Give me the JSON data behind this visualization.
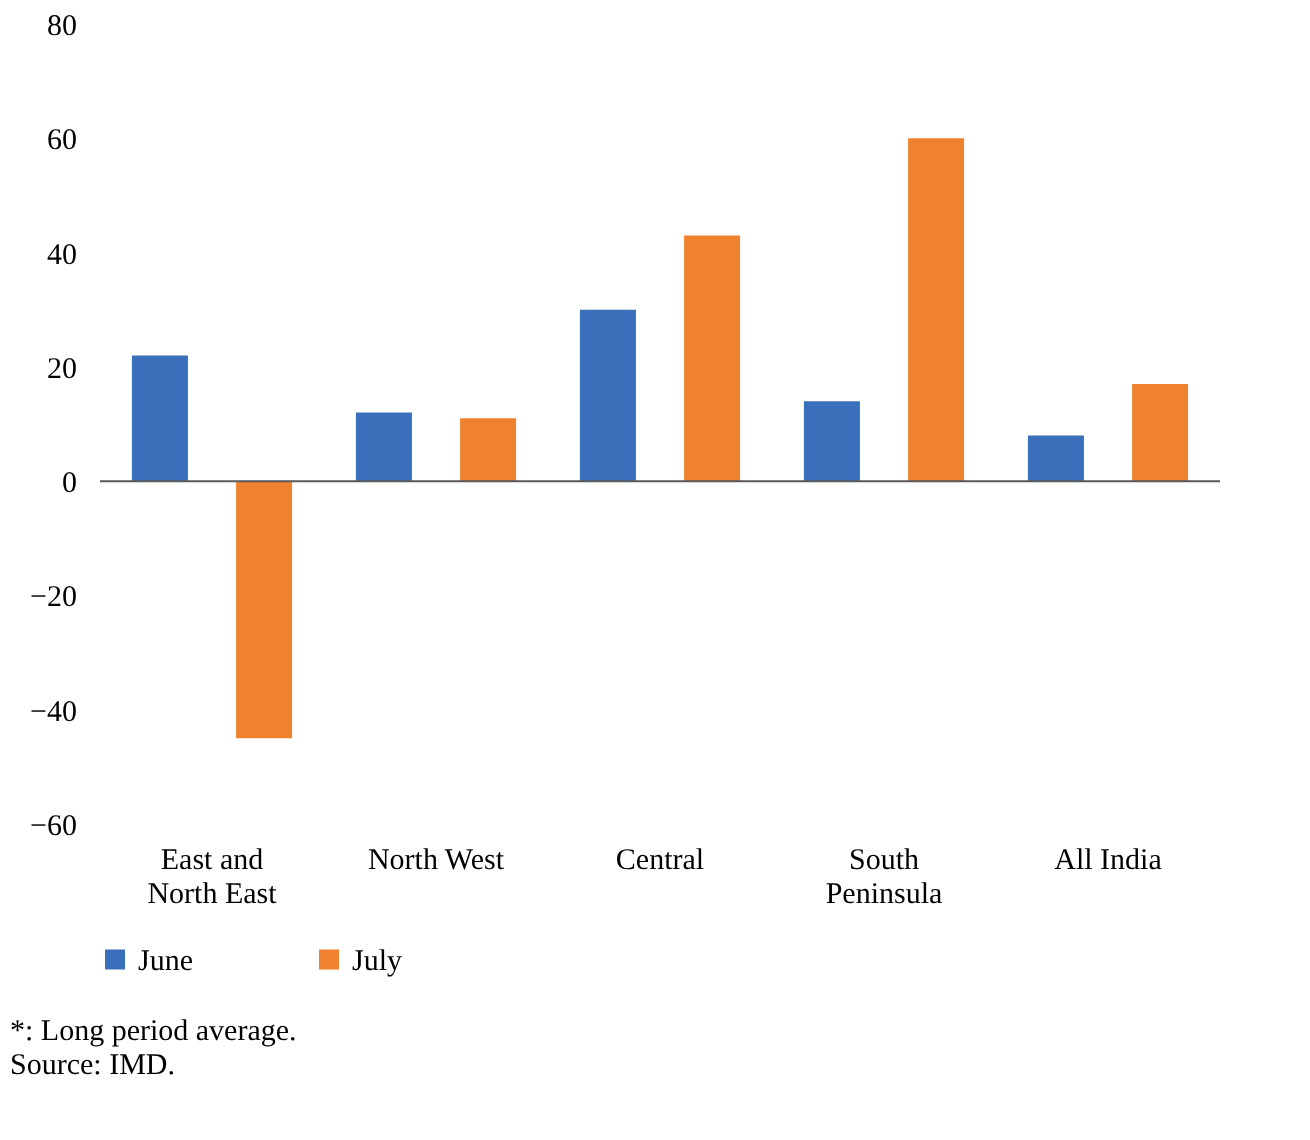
{
  "chart_data": {
    "type": "bar",
    "categories": [
      "East and North East",
      "North West",
      "Central",
      "South Peninsula",
      "All India"
    ],
    "series": [
      {
        "name": "June",
        "color": "#3a6fba",
        "values": [
          22,
          12,
          30,
          14,
          8
        ]
      },
      {
        "name": "July",
        "color": "#f0812e",
        "values": [
          -45,
          11,
          43,
          60,
          17
        ]
      }
    ],
    "ylim": [
      -60,
      80
    ],
    "yticks": [
      -60,
      -40,
      -20,
      0,
      20,
      40,
      60,
      80
    ],
    "grid": false,
    "legend": "bottom",
    "ref_lines": [
      {
        "axis": "y",
        "value": 0,
        "color": "#595959"
      }
    ],
    "annotations": [
      "*: Long period average.",
      "Source: IMD."
    ]
  }
}
